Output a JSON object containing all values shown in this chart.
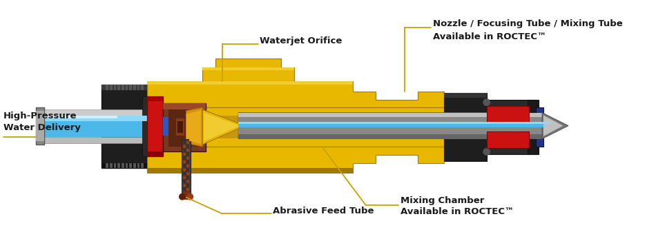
{
  "bg_color": "#ffffff",
  "yellow": "#E8B800",
  "yellow_shade": "#C8980A",
  "yellow_dark": "#A07800",
  "dark_gray": "#2a2a2a",
  "mid_gray": "#444444",
  "light_gray": "#aaaaaa",
  "silver": "#909090",
  "silver_light": "#c0c0c0",
  "blue_water": "#4ab8e8",
  "blue_light": "#90d8f8",
  "red": "#cc1111",
  "brown": "#7a3010",
  "brown_dark": "#5a2008",
  "ann_yellow": "#c8a000",
  "txt_color": "#1a1a1a",
  "labels": {
    "waterjet_orifice": "Waterjet Orifice",
    "nozzle_line1": "Nozzle / Focusing Tube / Mixing Tube",
    "nozzle_line2": "Available in ROCTEC™",
    "hp_line1": "High-Pressure",
    "hp_line2": "Water Delivery",
    "abrasive_feed": "Abrasive Feed Tube",
    "mixing_line1": "Mixing Chamber",
    "mixing_line2": "Available in ROCTEC™"
  }
}
